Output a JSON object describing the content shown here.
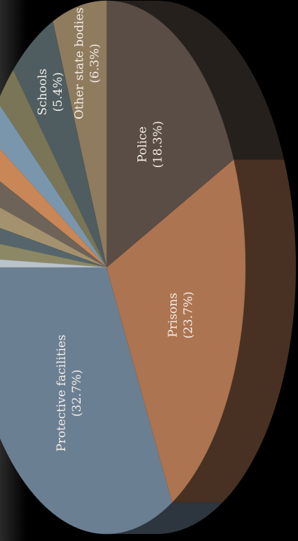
{
  "chart_data": {
    "type": "pie",
    "title": "",
    "style": "3d-tilted",
    "slices": [
      {
        "label": "Protective facilities",
        "value": 32.7,
        "display": "(32.7%)",
        "color": "#6b7f93",
        "labeled": true
      },
      {
        "label": "Prisons",
        "value": 23.7,
        "display": "(23.7%)",
        "color": "#ac7450",
        "labeled": true
      },
      {
        "label": "Police",
        "value": 18.3,
        "display": "(18.3%)",
        "color": "#5a4d46",
        "labeled": true
      },
      {
        "label": "Other state bodies",
        "value": 6.3,
        "display": "(6.3%)",
        "color": "#8f7b5e",
        "labeled": true
      },
      {
        "label": "Schools",
        "value": 5.4,
        "display": "(5.4%)",
        "color": "#4f5d61",
        "labeled": true
      },
      {
        "label": "",
        "value": 2.6,
        "color": "#7a7556",
        "labeled": false
      },
      {
        "label": "",
        "value": 2.3,
        "color": "#7a96ad",
        "labeled": false
      },
      {
        "label": "",
        "value": 2.0,
        "color": "#c98656",
        "labeled": false
      },
      {
        "label": "",
        "value": 1.8,
        "color": "#6e6358",
        "labeled": false
      },
      {
        "label": "",
        "value": 1.5,
        "color": "#a4916e",
        "labeled": false
      },
      {
        "label": "",
        "value": 1.2,
        "color": "#55656b",
        "labeled": false
      },
      {
        "label": "",
        "value": 1.2,
        "color": "#8c8866",
        "labeled": false
      },
      {
        "label": "",
        "value": 0.6,
        "color": "#b8c3cc",
        "labeled": false
      }
    ]
  }
}
